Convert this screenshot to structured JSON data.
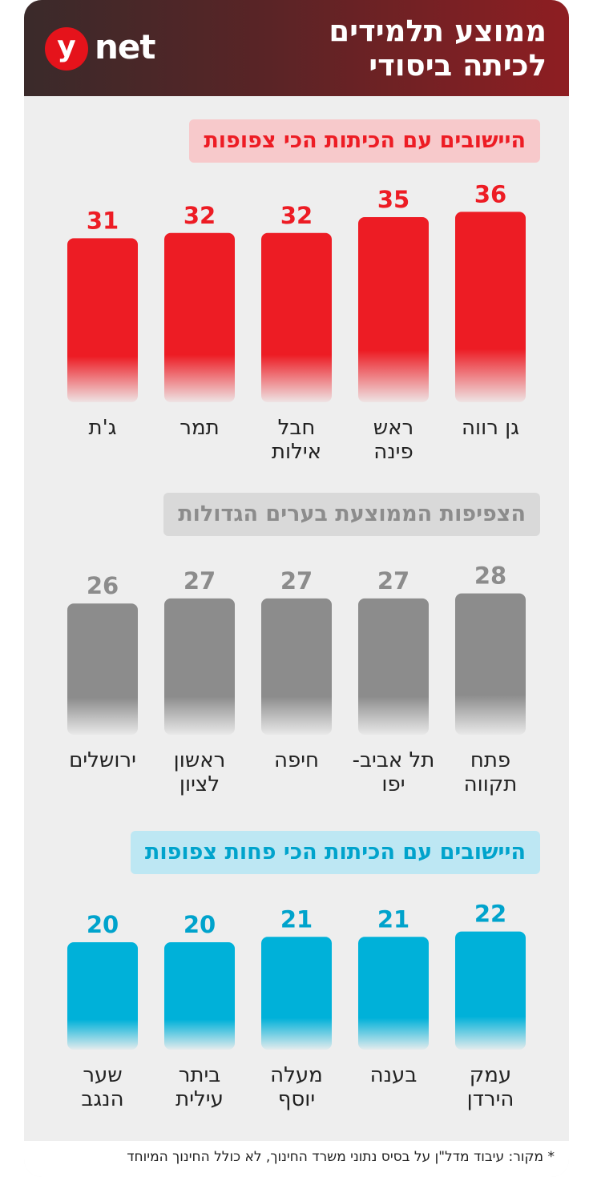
{
  "header": {
    "title_line1": "ממוצע תלמידים",
    "title_line2": "לכיתה ביסודי",
    "logo_y": "y",
    "logo_net": "net"
  },
  "colors": {
    "red": "#ed1c24",
    "red_label_bg": "#f7c9cb",
    "gray": "#8c8c8c",
    "gray_label_bg": "#d9d9d9",
    "blue": "#00b1d9",
    "blue_label_bg": "#bde7f3",
    "title_text": "#ed1c24",
    "gray_title_text": "#8c8c8c",
    "blue_title_text": "#00a3cc"
  },
  "chart_data": [
    {
      "type": "bar",
      "title": "היישובים עם הכיתות הכי צפופות",
      "categories": [
        "גן רווה",
        "ראש פינה",
        "חבל אילות",
        "תמר",
        "ג'ת"
      ],
      "category_lines": [
        [
          "גן רווה"
        ],
        [
          "ראש",
          "פינה"
        ],
        [
          "חבל",
          "אילות"
        ],
        [
          "תמר"
        ],
        [
          "ג'ת"
        ]
      ],
      "values": [
        36,
        35,
        32,
        32,
        31
      ],
      "value_labels": [
        "36",
        "35",
        "32",
        "32",
        "31"
      ],
      "color": "#ed1c24",
      "direction": "right-to-left"
    },
    {
      "type": "bar",
      "title": "הצפיפות הממוצעת בערים הגדולות",
      "categories": [
        "פתח תקווה",
        "תל אביב-יפו",
        "חיפה",
        "ראשון לציון",
        "ירושלים"
      ],
      "category_lines": [
        [
          "פתח",
          "תקווה"
        ],
        [
          "תל אביב-",
          "יפו"
        ],
        [
          "חיפה"
        ],
        [
          "ראשון",
          "לציון"
        ],
        [
          "ירושלים"
        ]
      ],
      "values": [
        28,
        27,
        27,
        27,
        26
      ],
      "value_labels": [
        "28",
        "27",
        "27",
        "27",
        "26"
      ],
      "color": "#8c8c8c",
      "direction": "right-to-left"
    },
    {
      "type": "bar",
      "title": "היישובים עם הכיתות הכי פחות צפופות",
      "categories": [
        "עמק הירדן",
        "בענה",
        "מעלה יוסף",
        "ביתר עילית",
        "שער הנגב"
      ],
      "category_lines": [
        [
          "עמק",
          "הירדן"
        ],
        [
          "בענה"
        ],
        [
          "מעלה",
          "יוסף"
        ],
        [
          "ביתר",
          "עילית"
        ],
        [
          "שער",
          "הנגב"
        ]
      ],
      "values": [
        22,
        21,
        21,
        20,
        20
      ],
      "value_labels": [
        "22",
        "21",
        "21",
        "20",
        "20"
      ],
      "color": "#00b1d9",
      "direction": "right-to-left"
    }
  ],
  "footer": {
    "source": "* מקור: עיבוד מדל\"ן על בסיס נתוני משרד החינוך, לא כולל החינוך המיוחד"
  }
}
